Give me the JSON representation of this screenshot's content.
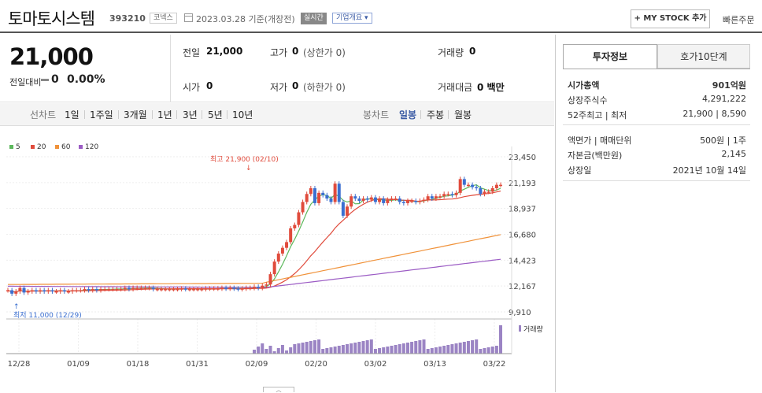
{
  "header": {
    "name": "토마토시스템",
    "code": "393210",
    "market": "코넥스",
    "date": "2023.03.28  기준(개장전)",
    "realtime": "실시간",
    "company_btn": "기업개요 ▾",
    "mystock_btn": "+ MY STOCK 추가",
    "quick_order": "빠른주문"
  },
  "price": {
    "current": "21,000",
    "change_label": "전일대비",
    "change": "0",
    "change_pct": "0.00%"
  },
  "summary": {
    "prev_close_label": "전일",
    "prev_close": "21,000",
    "high_label": "고가",
    "high": "0",
    "upper_limit": "(상한가 0)",
    "volume_label": "거래량",
    "volume": "0",
    "open_label": "시가",
    "open": "0",
    "low_label": "저가",
    "low": "0",
    "lower_limit": "(하한가 0)",
    "amount_label": "거래대금",
    "amount": "0 백만"
  },
  "chart_tabs": {
    "line_label": "선차트",
    "line_periods": [
      "1일",
      "1주일",
      "3개월",
      "1년",
      "3년",
      "5년",
      "10년"
    ],
    "candle_label": "봉차트",
    "candle_periods": [
      "일봉",
      "주봉",
      "월봉"
    ],
    "active": "일봉"
  },
  "legend": [
    "5",
    "20",
    "60",
    "120"
  ],
  "colors": {
    "ma5": "#5cb85c",
    "ma20": "#e04b3c",
    "ma60": "#f0923a",
    "ma120": "#9b5bc4",
    "up": "#e04b3c",
    "down": "#3b6fd0",
    "volume": "#9b84c4"
  },
  "annotations": {
    "high": "최고 21,900 (02/10)",
    "low": "최저 11,000 (12/29)",
    "volume_label": "거래량"
  },
  "chart_data": {
    "type": "candlestick",
    "y_ticks": [
      "23,450",
      "21,193",
      "18,937",
      "16,680",
      "14,423",
      "12,167",
      "9,910"
    ],
    "ylim": [
      9910,
      23450
    ],
    "x_labels": [
      "12/28",
      "01/09",
      "01/18",
      "01/31",
      "02/09",
      "02/20",
      "03/02",
      "03/13",
      "03/22"
    ],
    "candles_close": [
      11800,
      11500,
      11700,
      12000,
      11600,
      11700,
      11800,
      11700,
      11800,
      11700,
      11800,
      11700,
      11700,
      11800,
      11700,
      11700,
      11800,
      11800,
      11800,
      11900,
      11800,
      11900,
      11800,
      11900,
      11900,
      11900,
      11900,
      11900,
      11900,
      12000,
      11900,
      12000,
      12000,
      12000,
      12000,
      12000,
      11900,
      11900,
      11900,
      11900,
      11900,
      11900,
      11900,
      11950,
      11900,
      11900,
      11900,
      11900,
      11900,
      11950,
      11950,
      11950,
      11950,
      12000,
      11950,
      12000,
      11950,
      11900,
      11950,
      12000,
      12000,
      12100,
      12000,
      12200,
      12300,
      13200,
      14300,
      15000,
      15500,
      16000,
      17200,
      17500,
      18600,
      19500,
      20200,
      20700,
      19400,
      20300,
      20100,
      19800,
      19500,
      21100,
      19500,
      18300,
      19100,
      20000,
      19800,
      19600,
      19800,
      19700,
      19900,
      19500,
      19800,
      19400,
      19700,
      19800,
      19800,
      19500,
      19400,
      19600,
      19600,
      19500,
      19600,
      19700,
      20000,
      19800,
      20000,
      20000,
      20200,
      20200,
      20100,
      20300,
      21500,
      21000,
      21000,
      20800,
      20700,
      20200,
      20400,
      20400,
      20700,
      21000,
      21000
    ],
    "ma5_end": 20200,
    "ma20_end": 20000,
    "ma60_end": 16650,
    "ma120_end": 14500,
    "high": 21900,
    "low": 11000
  }
}
